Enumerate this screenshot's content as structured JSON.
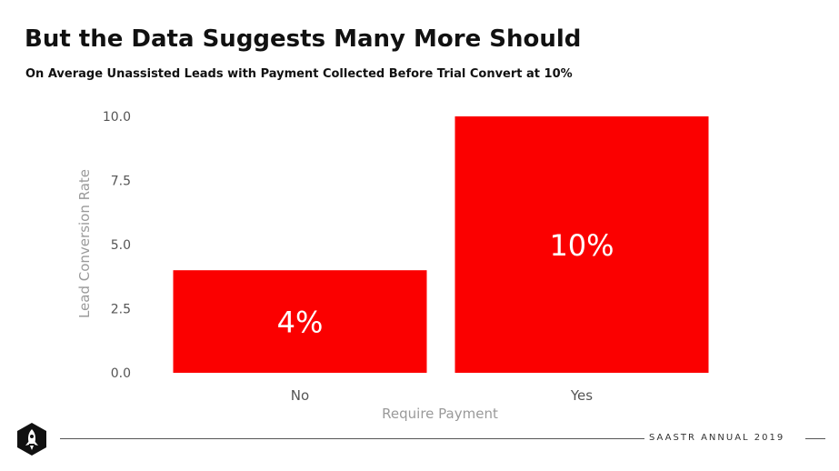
{
  "slide": {
    "title": "But the Data Suggests Many More Should",
    "subtitle": "On Average Unassisted Leads with Payment Collected Before Trial Convert at 10%",
    "footer": "SAASTR ANNUAL 2019",
    "logo_icon": "rocket-icon"
  },
  "colors": {
    "bar": "#fb0000",
    "bar_label": "#ffffff",
    "axis_text": "#9a9a9a",
    "tick_text": "#555555"
  },
  "chart_data": {
    "type": "bar",
    "categories": [
      "No",
      "Yes"
    ],
    "values": [
      4,
      10
    ],
    "data_labels": [
      "4%",
      "10%"
    ],
    "xlabel": "Require Payment",
    "ylabel": "Lead Conversion Rate",
    "ylim": [
      0,
      10
    ],
    "yticks": [
      "0.0",
      "2.5",
      "5.0",
      "7.5",
      "10.0"
    ],
    "grid": false,
    "legend": "none"
  }
}
